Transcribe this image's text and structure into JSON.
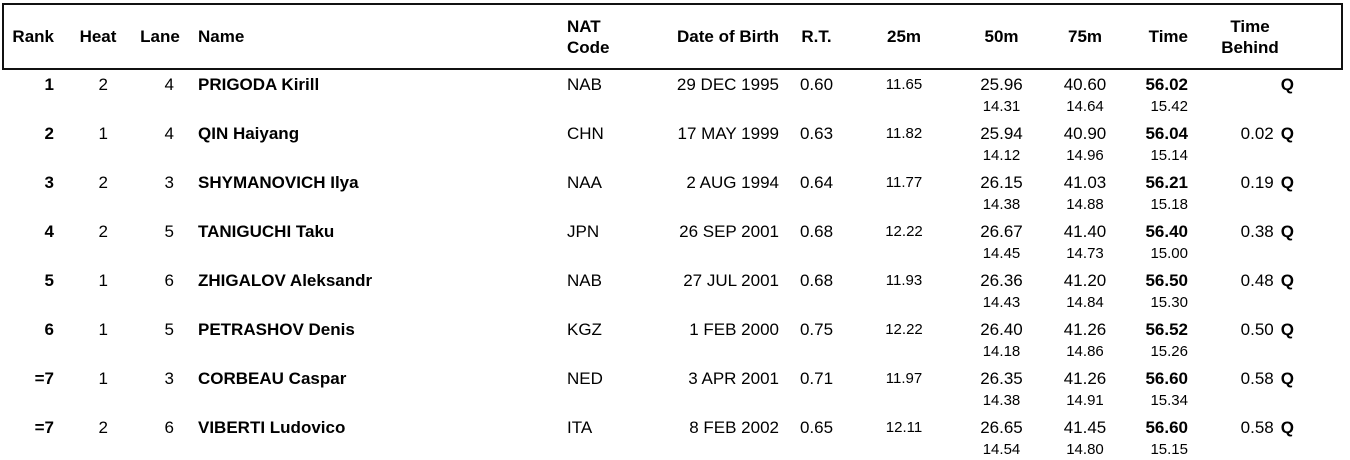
{
  "header": {
    "rank": "Rank",
    "heat": "Heat",
    "lane": "Lane",
    "name": "Name",
    "nat_line1": "NAT",
    "nat_line2": "Code",
    "dob": "Date of Birth",
    "rt": "R.T.",
    "d25": "25m",
    "d50": "50m",
    "d75": "75m",
    "time": "Time",
    "behind_line1": "Time",
    "behind_line2": "Behind"
  },
  "rows": [
    {
      "rank": "1",
      "heat": "2",
      "lane": "4",
      "name": "PRIGODA Kirill",
      "nat": "NAB",
      "dob": "29 DEC 1995",
      "rt": "0.60",
      "d25": "11.65",
      "d50": "25.96",
      "d50_split": "14.31",
      "d75": "40.60",
      "d75_split": "14.64",
      "time": "56.02",
      "time_split": "15.42",
      "behind": "",
      "qual": "Q"
    },
    {
      "rank": "2",
      "heat": "1",
      "lane": "4",
      "name": "QIN Haiyang",
      "nat": "CHN",
      "dob": "17 MAY 1999",
      "rt": "0.63",
      "d25": "11.82",
      "d50": "25.94",
      "d50_split": "14.12",
      "d75": "40.90",
      "d75_split": "14.96",
      "time": "56.04",
      "time_split": "15.14",
      "behind": "0.02",
      "qual": "Q"
    },
    {
      "rank": "3",
      "heat": "2",
      "lane": "3",
      "name": "SHYMANOVICH Ilya",
      "nat": "NAA",
      "dob": "2 AUG 1994",
      "rt": "0.64",
      "d25": "11.77",
      "d50": "26.15",
      "d50_split": "14.38",
      "d75": "41.03",
      "d75_split": "14.88",
      "time": "56.21",
      "time_split": "15.18",
      "behind": "0.19",
      "qual": "Q"
    },
    {
      "rank": "4",
      "heat": "2",
      "lane": "5",
      "name": "TANIGUCHI Taku",
      "nat": "JPN",
      "dob": "26 SEP 2001",
      "rt": "0.68",
      "d25": "12.22",
      "d50": "26.67",
      "d50_split": "14.45",
      "d75": "41.40",
      "d75_split": "14.73",
      "time": "56.40",
      "time_split": "15.00",
      "behind": "0.38",
      "qual": "Q"
    },
    {
      "rank": "5",
      "heat": "1",
      "lane": "6",
      "name": "ZHIGALOV Aleksandr",
      "nat": "NAB",
      "dob": "27 JUL 2001",
      "rt": "0.68",
      "d25": "11.93",
      "d50": "26.36",
      "d50_split": "14.43",
      "d75": "41.20",
      "d75_split": "14.84",
      "time": "56.50",
      "time_split": "15.30",
      "behind": "0.48",
      "qual": "Q"
    },
    {
      "rank": "6",
      "heat": "1",
      "lane": "5",
      "name": "PETRASHOV Denis",
      "nat": "KGZ",
      "dob": "1 FEB 2000",
      "rt": "0.75",
      "d25": "12.22",
      "d50": "26.40",
      "d50_split": "14.18",
      "d75": "41.26",
      "d75_split": "14.86",
      "time": "56.52",
      "time_split": "15.26",
      "behind": "0.50",
      "qual": "Q"
    },
    {
      "rank": "=7",
      "heat": "1",
      "lane": "3",
      "name": "CORBEAU Caspar",
      "nat": "NED",
      "dob": "3 APR 2001",
      "rt": "0.71",
      "d25": "11.97",
      "d50": "26.35",
      "d50_split": "14.38",
      "d75": "41.26",
      "d75_split": "14.91",
      "time": "56.60",
      "time_split": "15.34",
      "behind": "0.58",
      "qual": "Q"
    },
    {
      "rank": "=7",
      "heat": "2",
      "lane": "6",
      "name": "VIBERTI Ludovico",
      "nat": "ITA",
      "dob": "8 FEB 2002",
      "rt": "0.65",
      "d25": "12.11",
      "d50": "26.65",
      "d50_split": "14.54",
      "d75": "41.45",
      "d75_split": "14.80",
      "time": "56.60",
      "time_split": "15.15",
      "behind": "0.58",
      "qual": "Q"
    }
  ]
}
